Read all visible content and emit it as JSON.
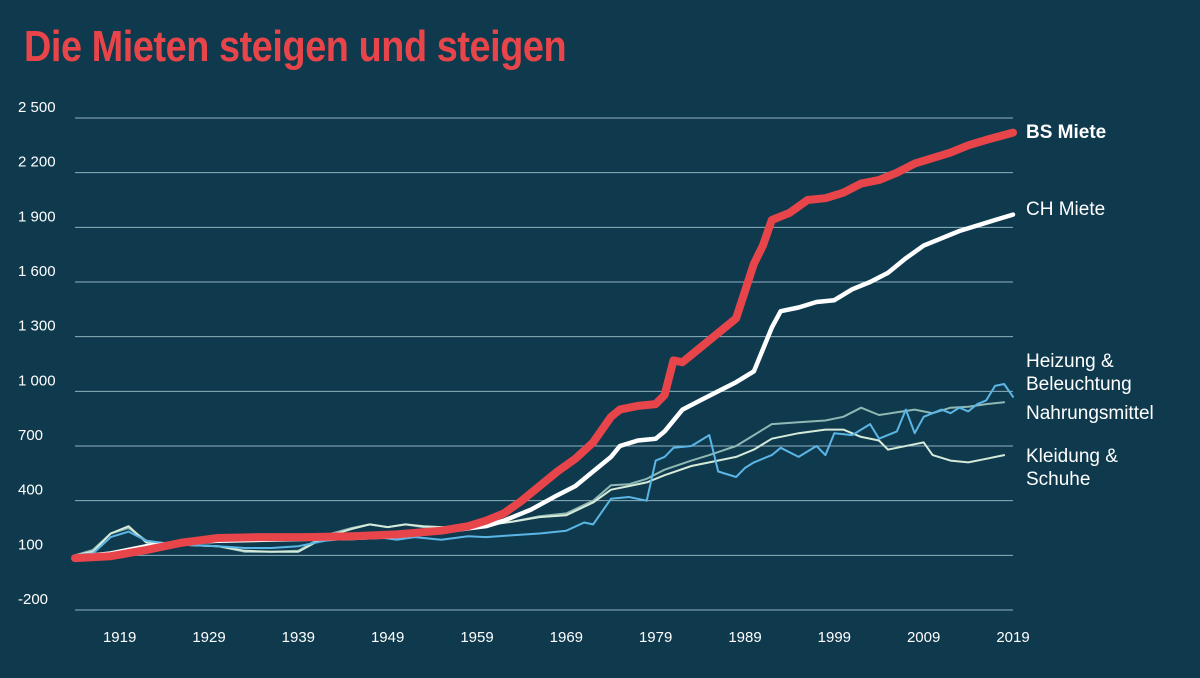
{
  "chart_data": {
    "type": "line",
    "title": "Die Mieten steigen und steigen",
    "xlabel": "",
    "ylabel": "",
    "xlim": [
      1914,
      2019
    ],
    "ylim": [
      -200,
      2500
    ],
    "yticks": [
      -200,
      100,
      400,
      700,
      1000,
      1300,
      1600,
      1900,
      2200,
      2500
    ],
    "ytick_labels": [
      "-200",
      "100",
      "400",
      "700",
      "1 000",
      "1 300",
      "1 600",
      "1 900",
      "2 200",
      "2 500"
    ],
    "xticks": [
      1919,
      1929,
      1939,
      1949,
      1959,
      1969,
      1979,
      1989,
      1999,
      2009,
      2019
    ],
    "grid": "horizontal",
    "legend": "direct labels at right end of lines",
    "colors": {
      "background": "#0f3a4e",
      "title": "#e8454b",
      "grid": "#8fb0bd"
    },
    "series": [
      {
        "name": "Nahrungsmittel",
        "label_lines": [
          "Nahrungsmittel"
        ],
        "color": "#8fb8b4",
        "width": 2,
        "bold": false,
        "points": [
          [
            1914,
            100
          ],
          [
            1916,
            130
          ],
          [
            1918,
            220
          ],
          [
            1920,
            250
          ],
          [
            1922,
            180
          ],
          [
            1925,
            160
          ],
          [
            1930,
            150
          ],
          [
            1933,
            120
          ],
          [
            1936,
            120
          ],
          [
            1939,
            125
          ],
          [
            1942,
            210
          ],
          [
            1945,
            250
          ],
          [
            1947,
            270
          ],
          [
            1949,
            255
          ],
          [
            1951,
            270
          ],
          [
            1953,
            255
          ],
          [
            1955,
            250
          ],
          [
            1958,
            255
          ],
          [
            1960,
            265
          ],
          [
            1963,
            285
          ],
          [
            1966,
            315
          ],
          [
            1969,
            330
          ],
          [
            1972,
            400
          ],
          [
            1974,
            485
          ],
          [
            1976,
            490
          ],
          [
            1978,
            520
          ],
          [
            1980,
            570
          ],
          [
            1983,
            620
          ],
          [
            1985,
            650
          ],
          [
            1988,
            700
          ],
          [
            1990,
            760
          ],
          [
            1992,
            820
          ],
          [
            1995,
            830
          ],
          [
            1998,
            840
          ],
          [
            2000,
            860
          ],
          [
            2002,
            910
          ],
          [
            2004,
            870
          ],
          [
            2006,
            885
          ],
          [
            2008,
            900
          ],
          [
            2010,
            880
          ],
          [
            2012,
            910
          ],
          [
            2014,
            915
          ],
          [
            2016,
            930
          ],
          [
            2018,
            940
          ]
        ]
      },
      {
        "name": "Kleidung & Schuhe",
        "label_lines": [
          "Kleidung &",
          "Schuhe"
        ],
        "color": "#d6ead9",
        "width": 2,
        "bold": false,
        "points": [
          [
            1914,
            100
          ],
          [
            1916,
            120
          ],
          [
            1918,
            220
          ],
          [
            1920,
            260
          ],
          [
            1922,
            170
          ],
          [
            1925,
            160
          ],
          [
            1930,
            150
          ],
          [
            1933,
            125
          ],
          [
            1936,
            120
          ],
          [
            1939,
            120
          ],
          [
            1942,
            200
          ],
          [
            1945,
            245
          ],
          [
            1947,
            270
          ],
          [
            1949,
            255
          ],
          [
            1951,
            270
          ],
          [
            1953,
            260
          ],
          [
            1955,
            255
          ],
          [
            1958,
            260
          ],
          [
            1960,
            265
          ],
          [
            1963,
            285
          ],
          [
            1966,
            310
          ],
          [
            1969,
            320
          ],
          [
            1972,
            390
          ],
          [
            1974,
            460
          ],
          [
            1976,
            480
          ],
          [
            1978,
            500
          ],
          [
            1980,
            540
          ],
          [
            1983,
            590
          ],
          [
            1985,
            610
          ],
          [
            1988,
            640
          ],
          [
            1990,
            680
          ],
          [
            1992,
            740
          ],
          [
            1995,
            770
          ],
          [
            1998,
            790
          ],
          [
            2000,
            790
          ],
          [
            2002,
            750
          ],
          [
            2004,
            730
          ],
          [
            2005,
            680
          ],
          [
            2006,
            690
          ],
          [
            2008,
            710
          ],
          [
            2009,
            720
          ],
          [
            2010,
            650
          ],
          [
            2012,
            620
          ],
          [
            2014,
            610
          ],
          [
            2016,
            630
          ],
          [
            2018,
            650
          ]
        ]
      },
      {
        "name": "Heizung & Beleuchtung",
        "label_lines": [
          "Heizung &",
          "Beleuchtung"
        ],
        "color": "#5bb6e6",
        "width": 2,
        "bold": false,
        "points": [
          [
            1914,
            100
          ],
          [
            1916,
            110
          ],
          [
            1918,
            200
          ],
          [
            1920,
            230
          ],
          [
            1922,
            180
          ],
          [
            1925,
            160
          ],
          [
            1930,
            150
          ],
          [
            1933,
            140
          ],
          [
            1936,
            140
          ],
          [
            1939,
            150
          ],
          [
            1942,
            180
          ],
          [
            1945,
            195
          ],
          [
            1948,
            200
          ],
          [
            1950,
            185
          ],
          [
            1952,
            200
          ],
          [
            1955,
            185
          ],
          [
            1958,
            205
          ],
          [
            1960,
            200
          ],
          [
            1963,
            210
          ],
          [
            1966,
            220
          ],
          [
            1969,
            235
          ],
          [
            1971,
            280
          ],
          [
            1972,
            270
          ],
          [
            1974,
            410
          ],
          [
            1976,
            420
          ],
          [
            1978,
            400
          ],
          [
            1979,
            620
          ],
          [
            1980,
            640
          ],
          [
            1981,
            690
          ],
          [
            1983,
            700
          ],
          [
            1985,
            760
          ],
          [
            1986,
            560
          ],
          [
            1988,
            530
          ],
          [
            1989,
            580
          ],
          [
            1990,
            610
          ],
          [
            1992,
            650
          ],
          [
            1993,
            690
          ],
          [
            1995,
            640
          ],
          [
            1997,
            700
          ],
          [
            1998,
            650
          ],
          [
            1999,
            770
          ],
          [
            2001,
            760
          ],
          [
            2003,
            820
          ],
          [
            2004,
            740
          ],
          [
            2006,
            780
          ],
          [
            2007,
            900
          ],
          [
            2008,
            770
          ],
          [
            2009,
            860
          ],
          [
            2011,
            900
          ],
          [
            2012,
            880
          ],
          [
            2013,
            910
          ],
          [
            2014,
            890
          ],
          [
            2015,
            930
          ],
          [
            2016,
            950
          ],
          [
            2017,
            1030
          ],
          [
            2018,
            1040
          ],
          [
            2019,
            970
          ]
        ]
      },
      {
        "name": "CH Miete",
        "label_lines": [
          "CH Miete"
        ],
        "color": "#ffffff",
        "width": 4.5,
        "bold": false,
        "points": [
          [
            1914,
            90
          ],
          [
            1918,
            110
          ],
          [
            1922,
            150
          ],
          [
            1926,
            170
          ],
          [
            1930,
            180
          ],
          [
            1935,
            185
          ],
          [
            1940,
            190
          ],
          [
            1945,
            195
          ],
          [
            1950,
            205
          ],
          [
            1955,
            230
          ],
          [
            1960,
            260
          ],
          [
            1962,
            290
          ],
          [
            1965,
            350
          ],
          [
            1968,
            430
          ],
          [
            1970,
            480
          ],
          [
            1972,
            560
          ],
          [
            1974,
            640
          ],
          [
            1975,
            700
          ],
          [
            1977,
            730
          ],
          [
            1979,
            740
          ],
          [
            1980,
            780
          ],
          [
            1982,
            900
          ],
          [
            1984,
            950
          ],
          [
            1986,
            1000
          ],
          [
            1988,
            1050
          ],
          [
            1990,
            1110
          ],
          [
            1992,
            1350
          ],
          [
            1993,
            1440
          ],
          [
            1995,
            1460
          ],
          [
            1997,
            1490
          ],
          [
            1999,
            1500
          ],
          [
            2001,
            1560
          ],
          [
            2003,
            1600
          ],
          [
            2005,
            1650
          ],
          [
            2007,
            1730
          ],
          [
            2009,
            1800
          ],
          [
            2011,
            1840
          ],
          [
            2013,
            1880
          ],
          [
            2015,
            1910
          ],
          [
            2017,
            1940
          ],
          [
            2019,
            1970
          ]
        ]
      },
      {
        "name": "BS Miete",
        "label_lines": [
          "BS Miete"
        ],
        "color": "#e8454b",
        "width": 8,
        "bold": true,
        "points": [
          [
            1914,
            85
          ],
          [
            1918,
            95
          ],
          [
            1922,
            130
          ],
          [
            1926,
            170
          ],
          [
            1930,
            195
          ],
          [
            1935,
            200
          ],
          [
            1940,
            200
          ],
          [
            1945,
            205
          ],
          [
            1950,
            215
          ],
          [
            1955,
            235
          ],
          [
            1958,
            260
          ],
          [
            1960,
            290
          ],
          [
            1962,
            330
          ],
          [
            1964,
            400
          ],
          [
            1966,
            480
          ],
          [
            1968,
            560
          ],
          [
            1970,
            630
          ],
          [
            1972,
            720
          ],
          [
            1974,
            860
          ],
          [
            1975,
            900
          ],
          [
            1977,
            920
          ],
          [
            1979,
            930
          ],
          [
            1980,
            980
          ],
          [
            1981,
            1170
          ],
          [
            1982,
            1160
          ],
          [
            1984,
            1240
          ],
          [
            1986,
            1320
          ],
          [
            1988,
            1400
          ],
          [
            1990,
            1700
          ],
          [
            1991,
            1800
          ],
          [
            1992,
            1940
          ],
          [
            1994,
            1980
          ],
          [
            1996,
            2050
          ],
          [
            1998,
            2060
          ],
          [
            2000,
            2090
          ],
          [
            2002,
            2140
          ],
          [
            2004,
            2160
          ],
          [
            2006,
            2200
          ],
          [
            2008,
            2250
          ],
          [
            2010,
            2280
          ],
          [
            2012,
            2310
          ],
          [
            2014,
            2350
          ],
          [
            2016,
            2380
          ],
          [
            2019,
            2420
          ]
        ]
      }
    ]
  }
}
